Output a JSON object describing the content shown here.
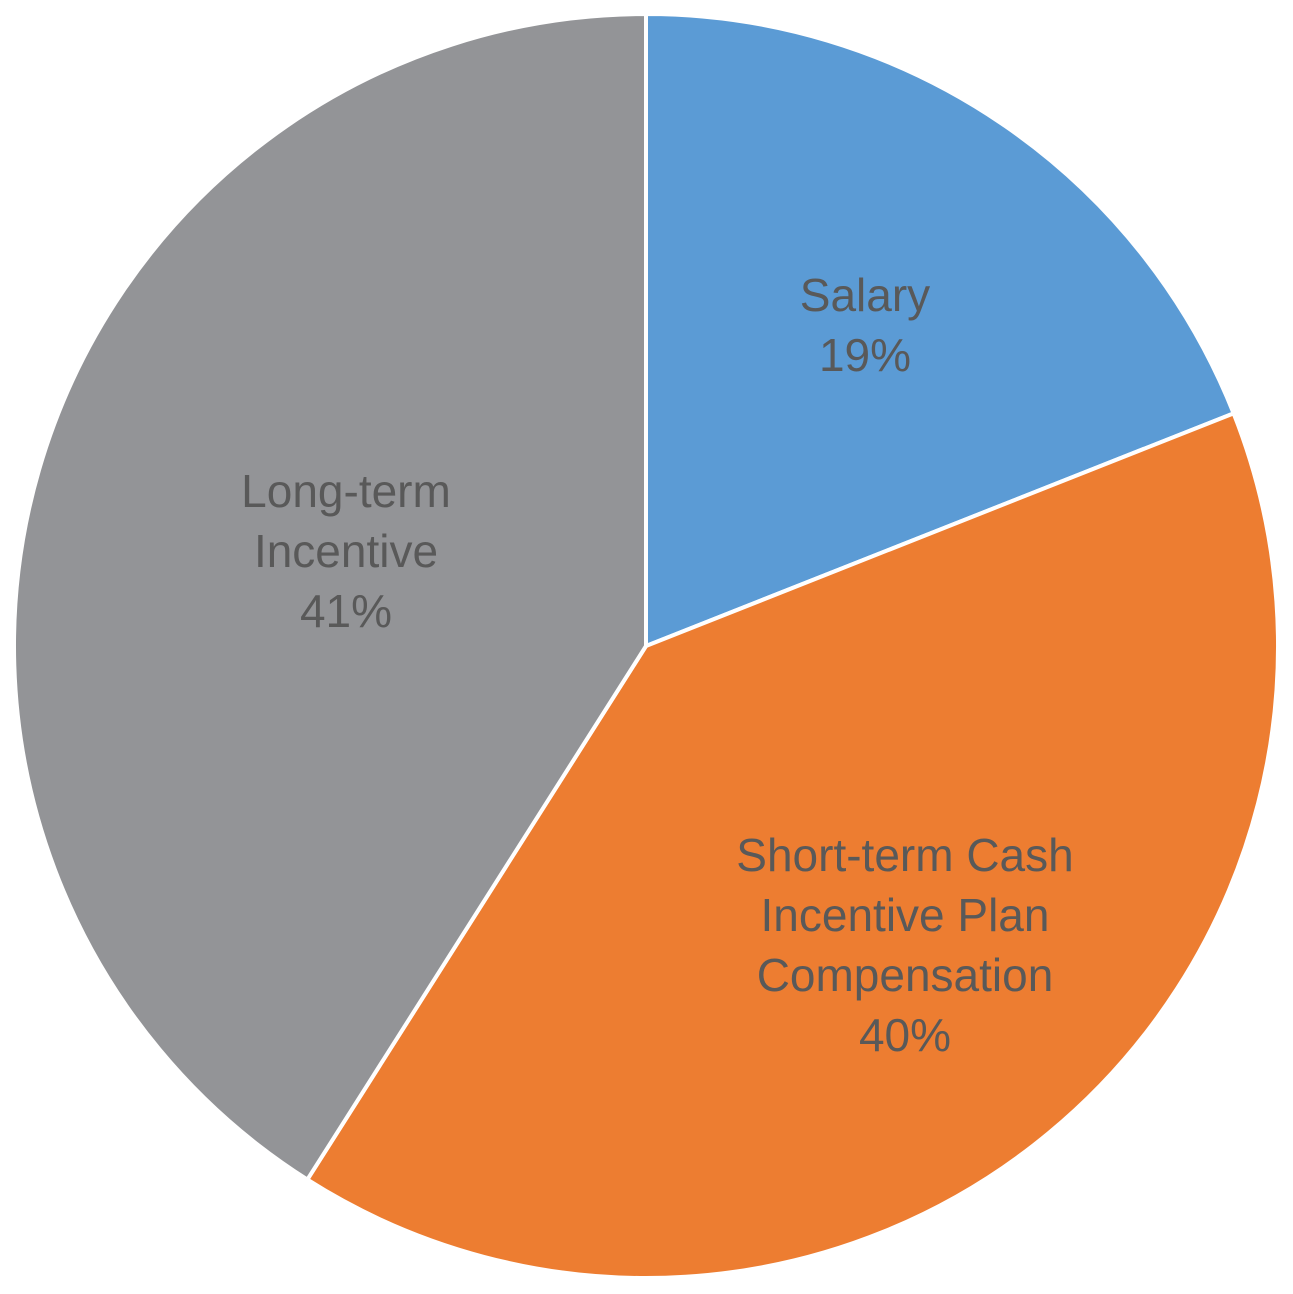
{
  "chart_data": {
    "type": "pie",
    "categories": [
      "Salary",
      "Short-term Cash Incentive Plan Compensation",
      "Long-term Incentive"
    ],
    "values": [
      19,
      40,
      41
    ],
    "value_labels": [
      "19%",
      "40%",
      "41%"
    ],
    "colors": [
      "#5b9bd5",
      "#ed7d31",
      "#939497"
    ]
  }
}
